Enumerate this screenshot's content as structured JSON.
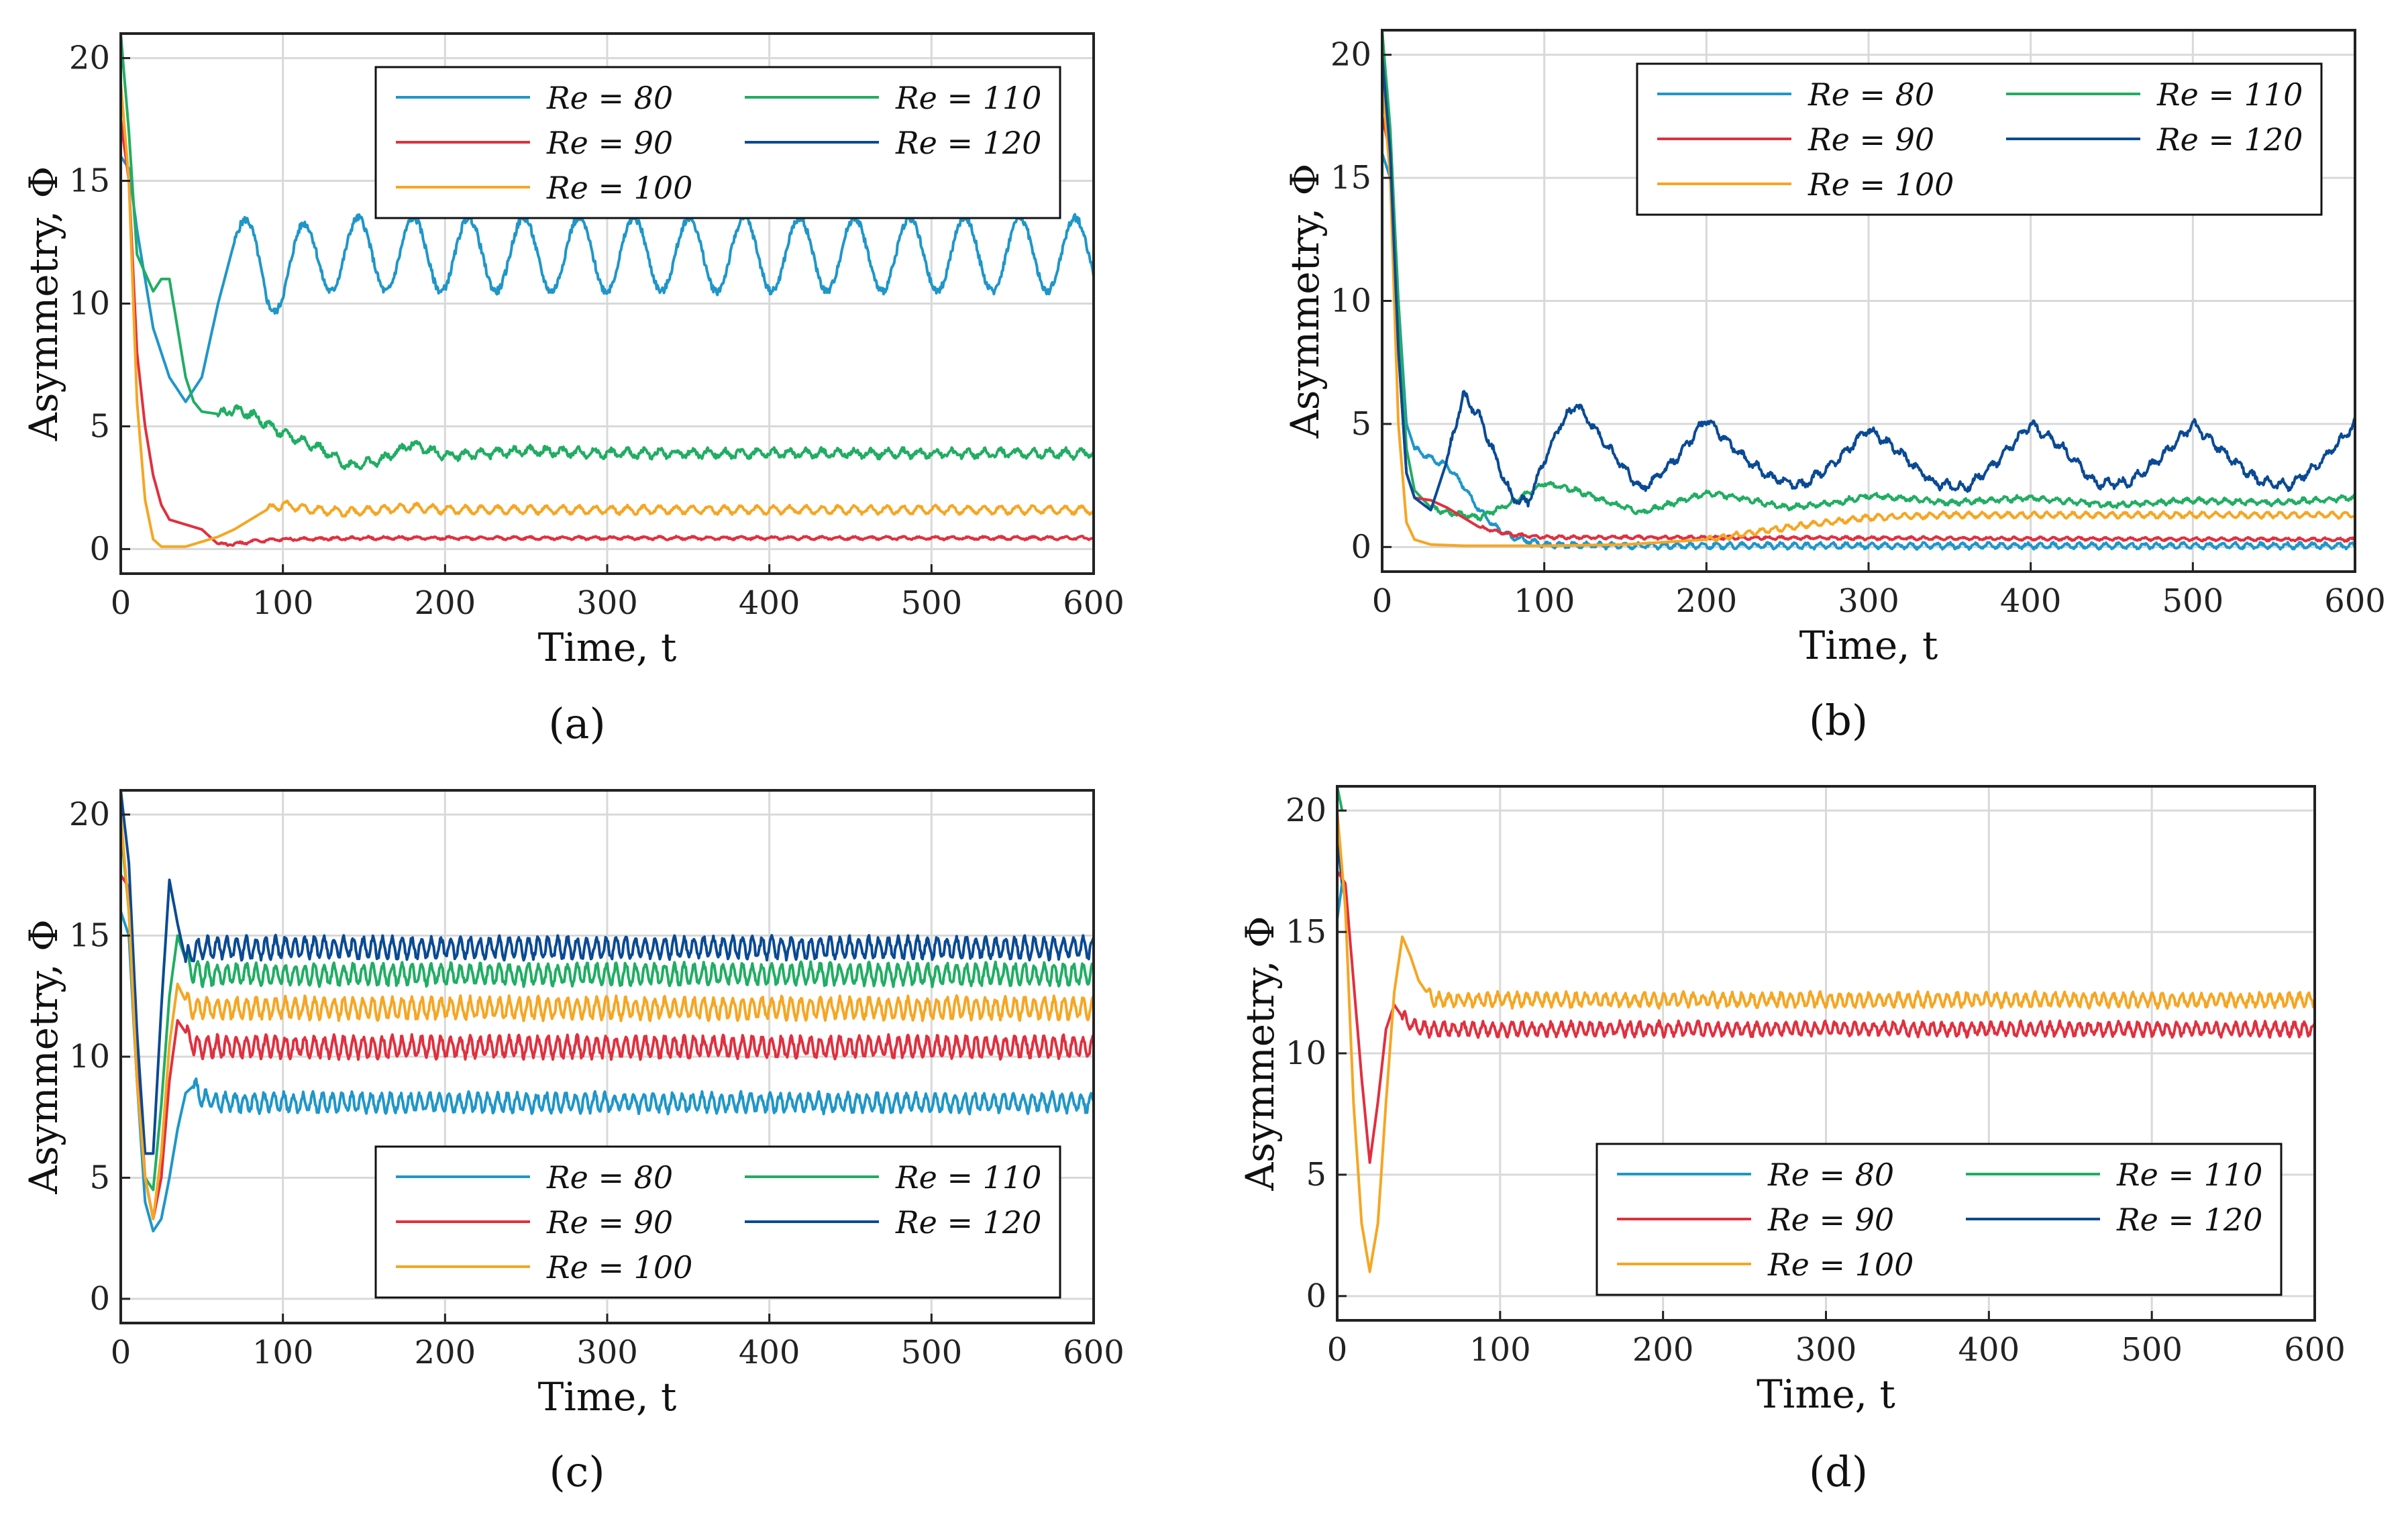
{
  "colors": {
    "Re80": "#1f96c8",
    "Re90": "#e0303f",
    "Re100": "#f5a623",
    "Re110": "#21ad63",
    "Re120": "#0a4a94",
    "grid": "#d9d9d9",
    "axis": "#222222"
  },
  "chart_data": [
    {
      "type": "line",
      "panel_label": "(a)",
      "xlabel": "Time, t",
      "ylabel": "Asymmetry, Φ",
      "xlim": [
        0,
        600
      ],
      "ylim": [
        -1,
        21
      ],
      "xticks": [
        0,
        100,
        200,
        300,
        400,
        500,
        600
      ],
      "yticks": [
        0,
        5,
        10,
        15,
        20
      ],
      "grid": true,
      "legend_position": "top-right",
      "legend": [
        "Re = 80",
        "Re = 110",
        "Re = 90",
        "Re = 120",
        "Re = 100"
      ],
      "series": [
        {
          "name": "Re = 80",
          "color_key": "Re80",
          "x": [
            0,
            5,
            10,
            20,
            30,
            40,
            50,
            60,
            70,
            90,
            120,
            600
          ],
          "y": [
            16,
            15.5,
            13,
            9,
            7,
            6,
            7,
            10,
            12.5,
            11,
            12,
            12
          ],
          "oscillation": {
            "amplitude": 1.5,
            "period": 34,
            "start": 70,
            "noise": 0.15
          }
        },
        {
          "name": "Re = 110",
          "color_key": "Re110",
          "x": [
            0,
            5,
            10,
            20,
            25,
            30,
            35,
            40,
            45,
            50,
            60,
            70,
            80,
            100,
            120,
            140,
            160,
            180,
            200,
            250,
            300,
            600
          ],
          "y": [
            21,
            17,
            12,
            10.5,
            11,
            11,
            9,
            7,
            6,
            5.6,
            5.5,
            5.7,
            5.5,
            4.7,
            4.2,
            3.4,
            3.6,
            4.3,
            3.8,
            4.0,
            3.9,
            3.9
          ],
          "oscillation": {
            "amplitude": 0.15,
            "period": 10,
            "start": 60,
            "noise": 0.1
          }
        },
        {
          "name": "Re = 90",
          "color_key": "Re90",
          "x": [
            0,
            5,
            10,
            15,
            20,
            25,
            30,
            40,
            50,
            60,
            70,
            80,
            100,
            150,
            600
          ],
          "y": [
            17.5,
            15,
            8,
            5,
            3,
            1.8,
            1.2,
            1,
            0.8,
            0.2,
            0.2,
            0.3,
            0.4,
            0.45,
            0.45
          ],
          "oscillation": {
            "amplitude": 0.05,
            "period": 10,
            "start": 60,
            "noise": 0.03
          }
        },
        {
          "name": "Re = 100",
          "color_key": "Re100",
          "x": [
            0,
            5,
            10,
            15,
            20,
            25,
            30,
            40,
            50,
            60,
            70,
            80,
            90,
            100,
            120,
            140,
            160,
            180,
            200,
            600
          ],
          "y": [
            19,
            15,
            6,
            2,
            0.4,
            0.1,
            0.1,
            0.1,
            0.3,
            0.5,
            0.8,
            1.2,
            1.6,
            1.8,
            1.6,
            1.5,
            1.6,
            1.7,
            1.6,
            1.6
          ],
          "oscillation": {
            "amplitude": 0.15,
            "period": 10,
            "start": 90,
            "noise": 0.05
          }
        },
        {
          "name": "Re = 120",
          "color_key": "Re120",
          "x": [
            0,
            5
          ],
          "y": [
            21,
            21
          ]
        }
      ]
    },
    {
      "type": "line",
      "panel_label": "(b)",
      "xlabel": "Time, t",
      "ylabel": "Asymmetry, Φ",
      "xlim": [
        0,
        600
      ],
      "ylim": [
        -1,
        21
      ],
      "xticks": [
        0,
        100,
        200,
        300,
        400,
        500,
        600
      ],
      "yticks": [
        0,
        5,
        10,
        15,
        20
      ],
      "grid": true,
      "legend_position": "top-right",
      "legend": [
        "Re = 80",
        "Re = 110",
        "Re = 90",
        "Re = 120",
        "Re = 100"
      ],
      "series": [
        {
          "name": "Re = 80",
          "color_key": "Re80",
          "x": [
            0,
            5,
            10,
            15,
            20,
            30,
            40,
            50,
            60,
            70,
            80,
            100,
            150,
            600
          ],
          "y": [
            16,
            15,
            10,
            5,
            4,
            3.6,
            3.3,
            2.5,
            1.5,
            0.8,
            0.4,
            0.1,
            0.05,
            0.05
          ],
          "oscillation": {
            "amplitude": 0.1,
            "period": 8,
            "start": 20,
            "noise": 0.05
          }
        },
        {
          "name": "Re = 110",
          "color_key": "Re110",
          "x": [
            0,
            5,
            10,
            15,
            20,
            30,
            40,
            60,
            80,
            100,
            120,
            140,
            160,
            180,
            200,
            220,
            250,
            280,
            300,
            350,
            400,
            450,
            500,
            550,
            600
          ],
          "y": [
            21,
            17,
            10,
            4,
            2.3,
            1.6,
            1.4,
            1.2,
            1.8,
            2.6,
            2.3,
            1.8,
            1.4,
            1.8,
            2.2,
            2.0,
            1.6,
            1.8,
            2.1,
            1.8,
            2.0,
            1.7,
            1.9,
            1.8,
            2.0
          ],
          "oscillation": {
            "amplitude": 0.08,
            "period": 8,
            "start": 30,
            "noise": 0.06
          }
        },
        {
          "name": "Re = 90",
          "color_key": "Re90",
          "x": [
            0,
            5,
            10,
            15,
            20,
            30,
            40,
            50,
            60,
            80,
            100,
            600
          ],
          "y": [
            17.5,
            16,
            8,
            3,
            2,
            1.9,
            1.6,
            1.2,
            0.8,
            0.5,
            0.4,
            0.3
          ],
          "oscillation": {
            "amplitude": 0.05,
            "period": 8,
            "start": 60,
            "noise": 0.03
          }
        },
        {
          "name": "Re = 100",
          "color_key": "Re100",
          "x": [
            0,
            5,
            10,
            15,
            20,
            30,
            50,
            100,
            150,
            200,
            250,
            300,
            350,
            400,
            600
          ],
          "y": [
            19,
            15,
            5,
            1,
            0.3,
            0.1,
            0.05,
            0.05,
            0.1,
            0.3,
            0.8,
            1.2,
            1.3,
            1.3,
            1.3
          ],
          "oscillation": {
            "amplitude": 0.1,
            "period": 8,
            "start": 200,
            "noise": 0.04
          }
        },
        {
          "name": "Re = 120",
          "color_key": "Re120",
          "x": [
            0,
            5,
            10,
            15,
            20,
            30,
            40,
            50,
            60,
            80,
            90,
            100,
            110,
            120,
            140,
            160,
            180,
            200,
            220,
            240,
            260,
            280,
            300,
            320,
            340,
            360,
            380,
            400,
            420,
            440,
            460,
            480,
            500,
            520,
            540,
            560,
            580,
            600
          ],
          "y": [
            20,
            16,
            8,
            3,
            2,
            1.5,
            3.5,
            6.2,
            5.3,
            2,
            1.8,
            3.5,
            5,
            5.8,
            4,
            2.3,
            3.5,
            5.2,
            3.8,
            2.8,
            2.5,
            3.5,
            4.8,
            3.8,
            2.6,
            2.4,
            3.5,
            5.0,
            4.0,
            2.6,
            2.6,
            3.6,
            5.0,
            3.8,
            2.7,
            2.5,
            3.5,
            5.0
          ],
          "oscillation": {
            "amplitude": 0.15,
            "period": 9,
            "start": 40,
            "noise": 0.1
          }
        }
      ]
    },
    {
      "type": "line",
      "panel_label": "(c)",
      "xlabel": "Time, t",
      "ylabel": "Asymmetry, Φ",
      "xlim": [
        0,
        600
      ],
      "ylim": [
        -1,
        21
      ],
      "xticks": [
        0,
        100,
        200,
        300,
        400,
        500,
        600
      ],
      "yticks": [
        0,
        5,
        10,
        15,
        20
      ],
      "grid": true,
      "legend_position": "bottom-right",
      "legend": [
        "Re = 80",
        "Re = 110",
        "Re = 90",
        "Re = 120",
        "Re = 100"
      ],
      "series": [
        {
          "name": "Re = 80",
          "color_key": "Re80",
          "x": [
            0,
            5,
            10,
            15,
            20,
            25,
            30,
            35,
            40,
            45,
            50,
            60,
            600
          ],
          "y": [
            16,
            15,
            9,
            4,
            2.8,
            3.3,
            5,
            7,
            8.5,
            8.8,
            8.3,
            8.1,
            8.1
          ],
          "oscillation": {
            "amplitude": 0.35,
            "period": 6,
            "start": 45,
            "noise": 0.12
          }
        },
        {
          "name": "Re = 110",
          "color_key": "Re110",
          "x": [
            0,
            5,
            10,
            15,
            20,
            25,
            30,
            35,
            40,
            45,
            50,
            600
          ],
          "y": [
            19.5,
            16,
            9,
            5,
            4.5,
            8,
            12.5,
            15,
            14,
            13.5,
            13.4,
            13.4
          ],
          "oscillation": {
            "amplitude": 0.4,
            "period": 6,
            "start": 40,
            "noise": 0.12
          }
        },
        {
          "name": "Re = 90",
          "color_key": "Re90",
          "x": [
            0,
            5,
            10,
            15,
            20,
            25,
            30,
            35,
            40,
            45,
            50,
            600
          ],
          "y": [
            17.5,
            17,
            10,
            5,
            3.3,
            5,
            9,
            11.5,
            11,
            10.5,
            10.4,
            10.4
          ],
          "oscillation": {
            "amplitude": 0.4,
            "period": 6,
            "start": 40,
            "noise": 0.12
          }
        },
        {
          "name": "Re = 120",
          "color_key": "Re120",
          "x": [
            0,
            5,
            10,
            15,
            20,
            25,
            30,
            35,
            40,
            45,
            50,
            600
          ],
          "y": [
            21,
            18,
            11,
            6,
            6,
            12,
            17.3,
            15.5,
            14,
            14.4,
            14.5,
            14.5
          ],
          "oscillation": {
            "amplitude": 0.4,
            "period": 6,
            "start": 40,
            "noise": 0.12
          }
        },
        {
          "name": "Re = 100",
          "color_key": "Re100",
          "x": [
            0,
            5,
            10,
            15,
            20,
            25,
            30,
            35,
            40,
            45,
            50,
            600
          ],
          "y": [
            20,
            16,
            9,
            5,
            3.3,
            6,
            10.5,
            13,
            12.3,
            12,
            12,
            12
          ],
          "oscillation": {
            "amplitude": 0.4,
            "period": 6,
            "start": 40,
            "noise": 0.12
          }
        }
      ]
    },
    {
      "type": "line",
      "panel_label": "(d)",
      "xlabel": "Time, t",
      "ylabel": "Asymmetry, Φ",
      "xlim": [
        0,
        600
      ],
      "ylim": [
        -1,
        21
      ],
      "xticks": [
        0,
        100,
        200,
        300,
        400,
        500,
        600
      ],
      "yticks": [
        0,
        5,
        10,
        15,
        20
      ],
      "grid": true,
      "legend_position": "bottom-right",
      "legend": [
        "Re = 80",
        "Re = 110",
        "Re = 90",
        "Re = 120",
        "Re = 100"
      ],
      "series": [
        {
          "name": "Re = 80",
          "color_key": "Re80",
          "x": [
            0,
            3,
            6
          ],
          "y": [
            15.5,
            17,
            16
          ]
        },
        {
          "name": "Re = 110",
          "color_key": "Re110",
          "x": [
            0,
            3
          ],
          "y": [
            21,
            20
          ]
        },
        {
          "name": "Re = 120",
          "color_key": "Re120",
          "x": [
            0,
            3
          ],
          "y": [
            19,
            17
          ]
        },
        {
          "name": "Re = 90",
          "color_key": "Re90",
          "x": [
            0,
            5,
            10,
            15,
            20,
            25,
            30,
            35,
            40,
            45,
            50,
            60,
            600
          ],
          "y": [
            17.5,
            17,
            13,
            9,
            5.5,
            8,
            11,
            12,
            11.5,
            11.2,
            11,
            11,
            11
          ],
          "oscillation": {
            "amplitude": 0.25,
            "period": 6,
            "start": 40,
            "noise": 0.1
          }
        },
        {
          "name": "Re = 100",
          "color_key": "Re100",
          "x": [
            0,
            5,
            10,
            15,
            20,
            25,
            30,
            35,
            40,
            45,
            50,
            55,
            60,
            600
          ],
          "y": [
            20,
            16,
            8,
            3,
            1,
            3,
            8,
            12.5,
            14.8,
            14,
            13,
            12.5,
            12.2,
            12.2
          ],
          "oscillation": {
            "amplitude": 0.25,
            "period": 6,
            "start": 55,
            "noise": 0.1
          }
        }
      ]
    }
  ]
}
